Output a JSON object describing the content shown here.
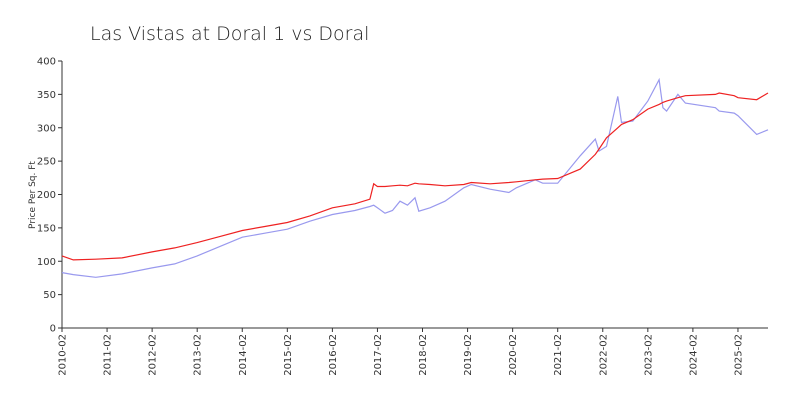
{
  "chart_data": {
    "type": "line",
    "title": "Las Vistas at Doral 1 vs Doral",
    "y_label": "Price Per Sq. Ft",
    "x": [
      "2010-02",
      "2010-05",
      "2010-11",
      "2011-06",
      "2012-02",
      "2012-08",
      "2013-02",
      "2013-08",
      "2014-02",
      "2014-08",
      "2015-02",
      "2015-08",
      "2016-02",
      "2016-08",
      "2016-12",
      "2017-01",
      "2017-02",
      "2017-04",
      "2017-06",
      "2017-08",
      "2017-10",
      "2017-12",
      "2018-01",
      "2018-04",
      "2018-08",
      "2019-01",
      "2019-03",
      "2019-08",
      "2020-01",
      "2020-03",
      "2020-08",
      "2020-10",
      "2021-02",
      "2021-08",
      "2021-12",
      "2022-01",
      "2022-03",
      "2022-06",
      "2022-07",
      "2022-10",
      "2023-02",
      "2023-05",
      "2023-06",
      "2023-07",
      "2023-10",
      "2023-12",
      "2024-08",
      "2024-09",
      "2025-01",
      "2025-02",
      "2025-07",
      "2025-10"
    ],
    "series": [
      {
        "color": "#ee2222",
        "values": [
          108,
          102,
          103,
          105,
          114,
          120,
          128,
          137,
          146,
          152,
          158,
          168,
          180,
          186,
          193,
          216,
          212,
          212,
          213,
          214,
          213,
          217,
          216,
          215,
          213,
          215,
          218,
          216,
          218,
          219,
          222,
          223,
          224,
          238,
          260,
          268,
          285,
          300,
          305,
          312,
          328,
          335,
          338,
          340,
          345,
          348,
          350,
          352,
          348,
          345,
          342,
          352
        ]
      },
      {
        "color": "#9999ee",
        "values": [
          83,
          80,
          76,
          81,
          90,
          96,
          108,
          122,
          136,
          142,
          148,
          160,
          170,
          176,
          182,
          184,
          180,
          172,
          176,
          190,
          184,
          195,
          175,
          180,
          190,
          210,
          215,
          208,
          203,
          210,
          222,
          217,
          217,
          258,
          283,
          265,
          272,
          347,
          308,
          310,
          340,
          372,
          330,
          325,
          350,
          337,
          330,
          325,
          322,
          318,
          290,
          297
        ]
      }
    ],
    "xlim": [
      "2010-02",
      "2025-10"
    ],
    "xticks": [
      "2010-02",
      "2011-02",
      "2012-02",
      "2013-02",
      "2014-02",
      "2015-02",
      "2016-02",
      "2017-02",
      "2018-02",
      "2019-02",
      "2020-02",
      "2021-02",
      "2022-02",
      "2023-02",
      "2024-02",
      "2025-02"
    ],
    "ylim": [
      0,
      400
    ],
    "yticks": [
      0,
      50,
      100,
      150,
      200,
      250,
      300,
      350,
      400
    ]
  }
}
